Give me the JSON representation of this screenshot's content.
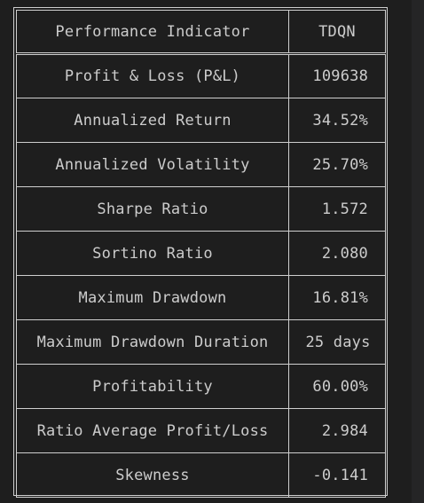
{
  "table": {
    "headers": [
      "Performance Indicator",
      "TDQN"
    ],
    "rows": [
      {
        "indicator": "Profit & Loss (P&L)",
        "value": "109638"
      },
      {
        "indicator": "Annualized Return",
        "value": "34.52%"
      },
      {
        "indicator": "Annualized Volatility",
        "value": "25.70%"
      },
      {
        "indicator": "Sharpe Ratio",
        "value": "1.572"
      },
      {
        "indicator": "Sortino Ratio",
        "value": "2.080"
      },
      {
        "indicator": "Maximum Drawdown",
        "value": "16.81%"
      },
      {
        "indicator": "Maximum Drawdown Duration",
        "value": "25 days"
      },
      {
        "indicator": "Profitability",
        "value": "60.00%"
      },
      {
        "indicator": "Ratio Average Profit/Loss",
        "value": "2.984"
      },
      {
        "indicator": "Skewness",
        "value": "-0.141"
      }
    ]
  },
  "colors": {
    "background": "#1e1e1e",
    "text": "#cccccc",
    "border": "#cfcfcf"
  }
}
